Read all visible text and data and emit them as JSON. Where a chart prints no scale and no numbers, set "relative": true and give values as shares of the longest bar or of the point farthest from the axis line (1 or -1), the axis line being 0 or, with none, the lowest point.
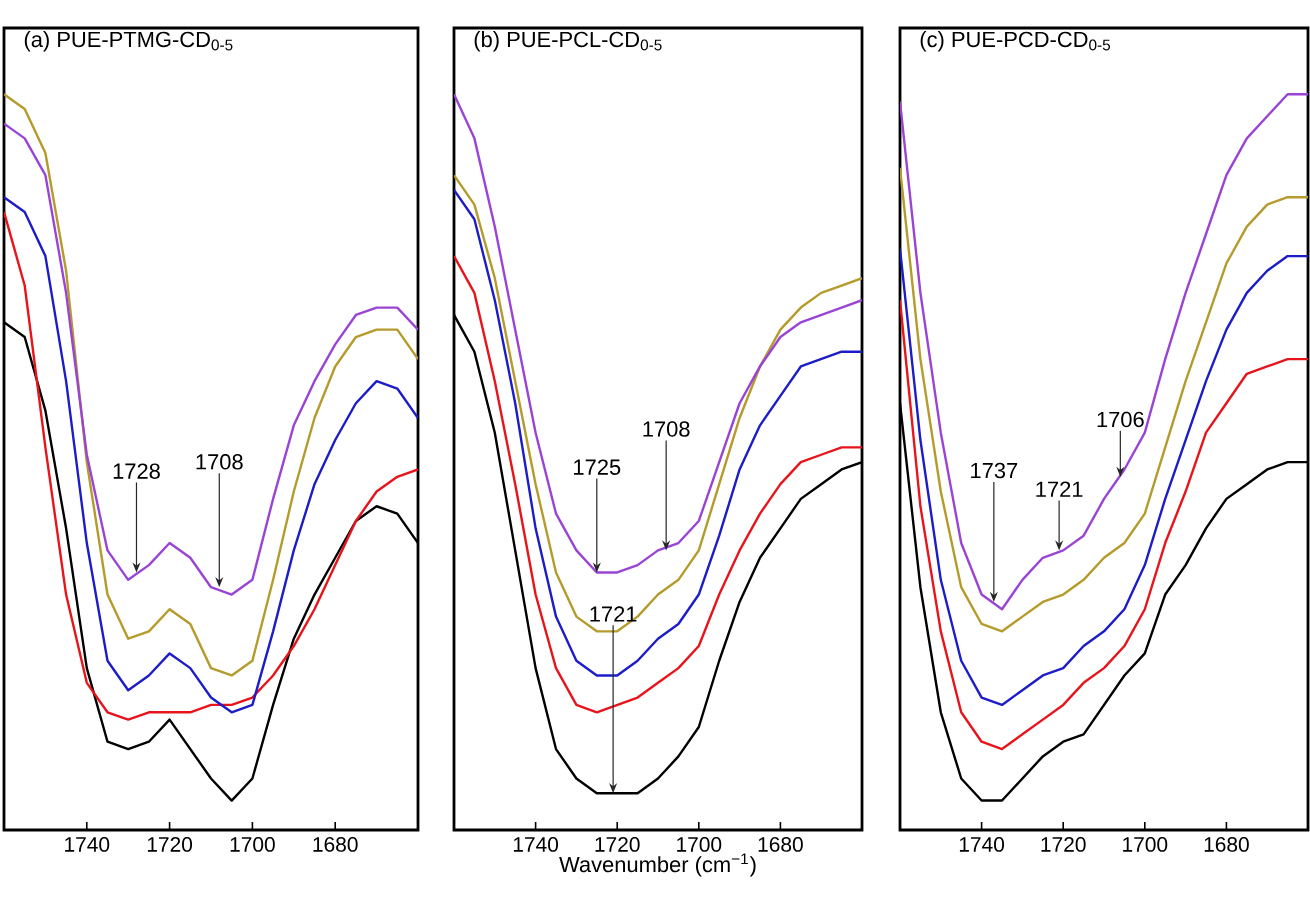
{
  "chart_data": [
    {
      "type": "line",
      "title": "(a) PUE-PTMG-CD$_{0-5}$",
      "relative": true,
      "x": [
        1760,
        1755,
        1750,
        1745,
        1740,
        1735,
        1730,
        1725,
        1720,
        1715,
        1710,
        1705,
        1700,
        1695,
        1690,
        1685,
        1680,
        1675,
        1670,
        1665,
        1660
      ],
      "xlim": [
        1760,
        1660
      ],
      "xticks": [
        1740,
        1720,
        1700,
        1680
      ],
      "series": [
        {
          "color": "#000000",
          "values": [
            0.69,
            0.67,
            0.57,
            0.41,
            0.22,
            0.12,
            0.11,
            0.12,
            0.15,
            0.11,
            0.07,
            0.04,
            0.07,
            0.17,
            0.26,
            0.32,
            0.37,
            0.42,
            0.44,
            0.43,
            0.39
          ]
        },
        {
          "color": "#e8141b",
          "values": [
            0.84,
            0.74,
            0.52,
            0.32,
            0.2,
            0.16,
            0.15,
            0.16,
            0.16,
            0.16,
            0.17,
            0.17,
            0.18,
            0.21,
            0.25,
            0.3,
            0.36,
            0.42,
            0.46,
            0.48,
            0.49
          ]
        },
        {
          "color": "#1c1cc8",
          "values": [
            0.86,
            0.84,
            0.78,
            0.61,
            0.39,
            0.23,
            0.19,
            0.21,
            0.24,
            0.22,
            0.18,
            0.16,
            0.17,
            0.27,
            0.38,
            0.47,
            0.53,
            0.58,
            0.61,
            0.6,
            0.56
          ]
        },
        {
          "color": "#b59a2c",
          "values": [
            1.0,
            0.98,
            0.92,
            0.76,
            0.5,
            0.32,
            0.26,
            0.27,
            0.3,
            0.28,
            0.22,
            0.21,
            0.23,
            0.34,
            0.46,
            0.56,
            0.63,
            0.67,
            0.68,
            0.68,
            0.64
          ]
        },
        {
          "color": "#9a44d6",
          "values": [
            0.96,
            0.94,
            0.89,
            0.73,
            0.51,
            0.38,
            0.34,
            0.36,
            0.39,
            0.37,
            0.33,
            0.32,
            0.34,
            0.45,
            0.55,
            0.61,
            0.66,
            0.7,
            0.71,
            0.71,
            0.68
          ]
        }
      ],
      "annotations": [
        {
          "text": "1728",
          "x": 1728,
          "y": 0.35
        },
        {
          "text": "1708",
          "x": 1708,
          "y": 0.33
        }
      ]
    },
    {
      "type": "line",
      "title": "(b) PUE-PCL-CD$_{0-5}$",
      "xlabel": "Wavenumber (cm$^{−1}$)",
      "relative": true,
      "x": [
        1760,
        1755,
        1750,
        1745,
        1740,
        1735,
        1730,
        1725,
        1720,
        1715,
        1710,
        1705,
        1700,
        1695,
        1690,
        1685,
        1680,
        1675,
        1670,
        1665,
        1660
      ],
      "xlim": [
        1760,
        1660
      ],
      "xticks": [
        1740,
        1720,
        1700,
        1680
      ],
      "series": [
        {
          "color": "#000000",
          "values": [
            0.7,
            0.65,
            0.54,
            0.38,
            0.22,
            0.11,
            0.07,
            0.05,
            0.05,
            0.05,
            0.07,
            0.1,
            0.14,
            0.23,
            0.31,
            0.37,
            0.41,
            0.45,
            0.47,
            0.49,
            0.5
          ]
        },
        {
          "color": "#e8141b",
          "values": [
            0.78,
            0.73,
            0.61,
            0.47,
            0.32,
            0.22,
            0.17,
            0.16,
            0.17,
            0.18,
            0.2,
            0.22,
            0.25,
            0.32,
            0.38,
            0.43,
            0.47,
            0.5,
            0.51,
            0.52,
            0.52
          ]
        },
        {
          "color": "#1c1cc8",
          "values": [
            0.87,
            0.83,
            0.72,
            0.58,
            0.41,
            0.29,
            0.23,
            0.21,
            0.21,
            0.23,
            0.26,
            0.28,
            0.32,
            0.4,
            0.49,
            0.55,
            0.59,
            0.63,
            0.64,
            0.65,
            0.65
          ]
        },
        {
          "color": "#b59a2c",
          "values": [
            0.89,
            0.85,
            0.75,
            0.61,
            0.47,
            0.35,
            0.29,
            0.27,
            0.27,
            0.29,
            0.32,
            0.34,
            0.38,
            0.47,
            0.56,
            0.63,
            0.68,
            0.71,
            0.73,
            0.74,
            0.75
          ]
        },
        {
          "color": "#9a44d6",
          "values": [
            1.0,
            0.94,
            0.82,
            0.68,
            0.54,
            0.43,
            0.38,
            0.35,
            0.35,
            0.36,
            0.38,
            0.39,
            0.42,
            0.5,
            0.58,
            0.63,
            0.67,
            0.69,
            0.7,
            0.71,
            0.72
          ]
        }
      ],
      "annotations": [
        {
          "text": "1725",
          "x": 1725,
          "y": 0.35
        },
        {
          "text": "1708",
          "x": 1708,
          "y": 0.38
        },
        {
          "text": "1721",
          "x": 1721,
          "y": 0.05
        }
      ]
    },
    {
      "type": "line",
      "title": "(c) PUE-PCD-CD$_{0-5}$",
      "relative": true,
      "x": [
        1760,
        1755,
        1750,
        1745,
        1740,
        1735,
        1730,
        1725,
        1720,
        1715,
        1710,
        1705,
        1700,
        1695,
        1690,
        1685,
        1680,
        1675,
        1670,
        1665,
        1660
      ],
      "xlim": [
        1760,
        1660
      ],
      "xticks": [
        1740,
        1720,
        1700,
        1680
      ],
      "series": [
        {
          "color": "#000000",
          "values": [
            0.58,
            0.33,
            0.16,
            0.07,
            0.04,
            0.04,
            0.07,
            0.1,
            0.12,
            0.13,
            0.17,
            0.21,
            0.24,
            0.32,
            0.36,
            0.41,
            0.45,
            0.47,
            0.49,
            0.5,
            0.5
          ]
        },
        {
          "color": "#e8141b",
          "values": [
            0.72,
            0.44,
            0.27,
            0.16,
            0.12,
            0.11,
            0.13,
            0.15,
            0.17,
            0.2,
            0.22,
            0.25,
            0.3,
            0.39,
            0.46,
            0.54,
            0.58,
            0.62,
            0.63,
            0.64,
            0.64
          ]
        },
        {
          "color": "#1c1cc8",
          "values": [
            0.79,
            0.53,
            0.34,
            0.23,
            0.18,
            0.17,
            0.19,
            0.21,
            0.22,
            0.25,
            0.27,
            0.3,
            0.36,
            0.45,
            0.53,
            0.61,
            0.68,
            0.73,
            0.76,
            0.78,
            0.78
          ]
        },
        {
          "color": "#b59a2c",
          "values": [
            0.9,
            0.64,
            0.46,
            0.33,
            0.28,
            0.27,
            0.29,
            0.31,
            0.32,
            0.34,
            0.37,
            0.39,
            0.43,
            0.52,
            0.61,
            0.69,
            0.77,
            0.82,
            0.85,
            0.86,
            0.86
          ]
        },
        {
          "color": "#9a44d6",
          "values": [
            0.99,
            0.73,
            0.54,
            0.39,
            0.32,
            0.3,
            0.34,
            0.37,
            0.38,
            0.4,
            0.45,
            0.49,
            0.54,
            0.64,
            0.73,
            0.81,
            0.89,
            0.94,
            0.97,
            1.0,
            1.0
          ]
        }
      ],
      "annotations": [
        {
          "text": "1737",
          "x": 1737,
          "y": 0.31
        },
        {
          "text": "1721",
          "x": 1721,
          "y": 0.38
        },
        {
          "text": "1706",
          "x": 1706,
          "y": 0.48
        }
      ]
    }
  ]
}
